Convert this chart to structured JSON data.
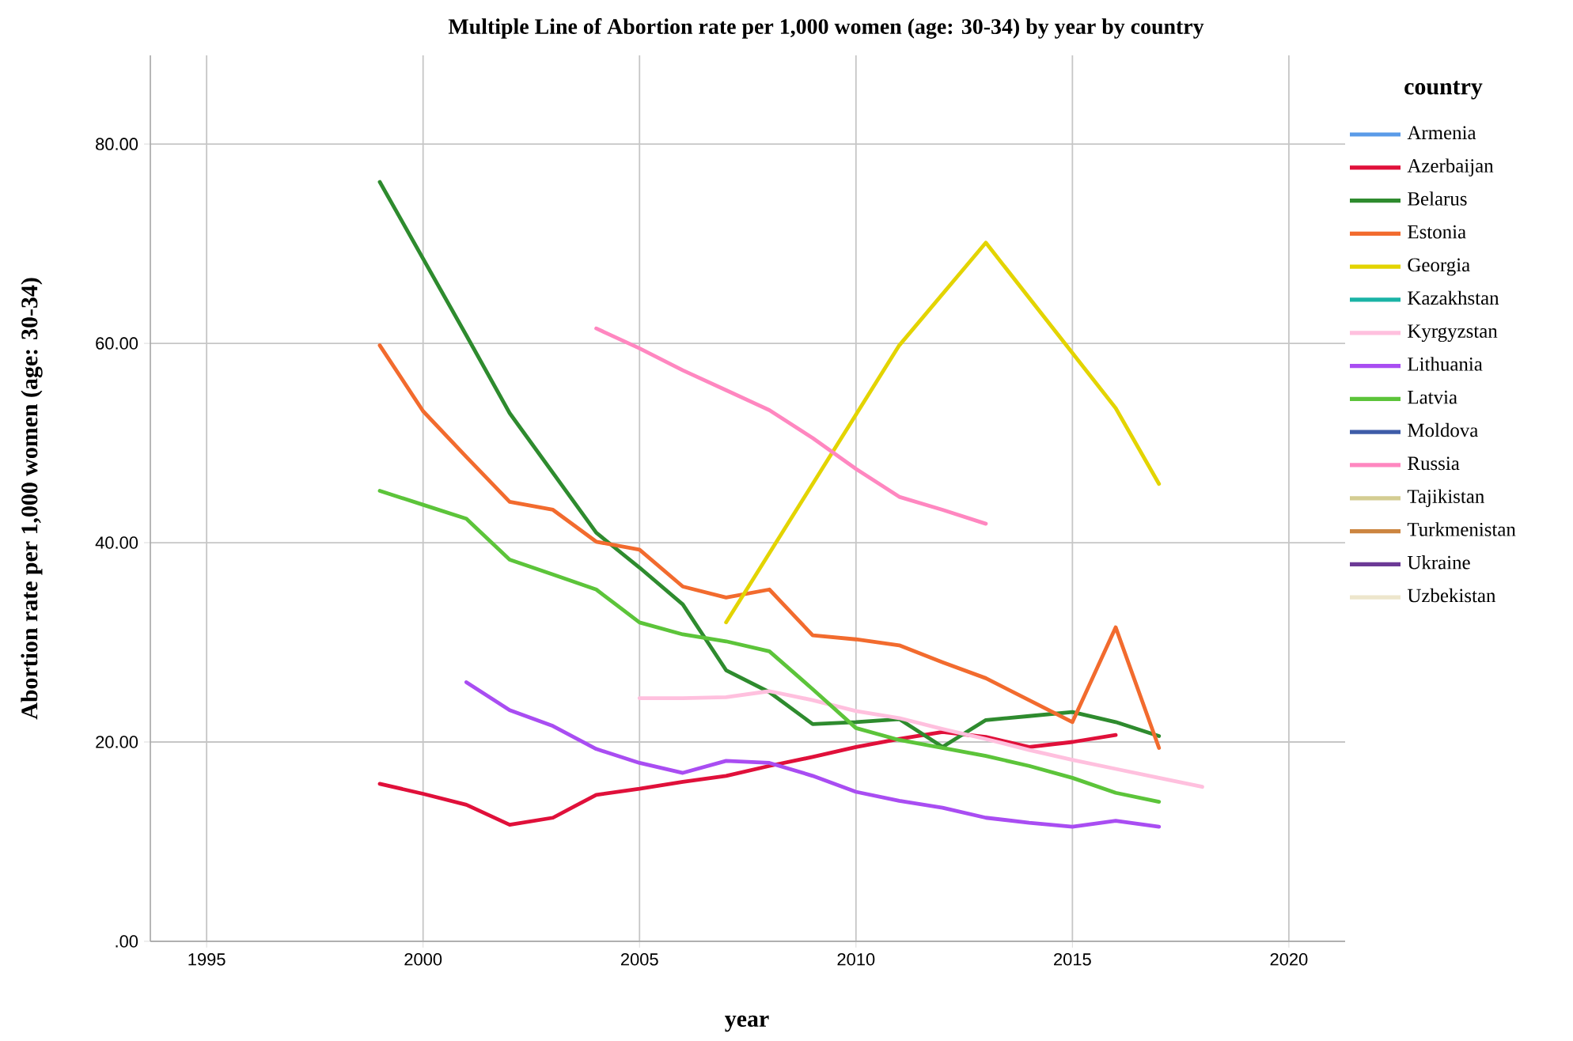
{
  "chart_data": {
    "type": "line",
    "title": "Multiple Line of Abortion rate per 1,000 women (age: 30-34) by year by country",
    "xlabel": "year",
    "ylabel": "Abortion rate per 1,000 women (age: 30-34)",
    "legend_title": "country",
    "legend": "right",
    "grid": true,
    "line_style": "solid",
    "x": [
      1999,
      2000,
      2001,
      2002,
      2003,
      2004,
      2005,
      2006,
      2007,
      2008,
      2009,
      2010,
      2011,
      2012,
      2013,
      2014,
      2015,
      2016,
      2017,
      2018
    ],
    "xlim": [
      1993.7,
      2021.3
    ],
    "xticks": [
      1995,
      2000,
      2005,
      2010,
      2015,
      2020
    ],
    "ylim": [
      0,
      88.9
    ],
    "yticks": [
      {
        "value": 0,
        "label": ".00"
      },
      {
        "value": 20,
        "label": "20.00"
      },
      {
        "value": 40,
        "label": "40.00"
      },
      {
        "value": 60,
        "label": "60.00"
      },
      {
        "value": 80,
        "label": "80.00"
      }
    ],
    "series": [
      {
        "name": "Armenia",
        "color": "#5a9be8",
        "values": [
          null,
          null,
          null,
          null,
          null,
          null,
          null,
          null,
          null,
          null,
          null,
          null,
          null,
          null,
          null,
          null,
          null,
          null,
          null,
          null
        ]
      },
      {
        "name": "Azerbaijan",
        "color": "#e0103a",
        "values": [
          15.8,
          14.8,
          13.7,
          11.7,
          12.4,
          14.7,
          15.3,
          16.0,
          16.6,
          17.6,
          18.5,
          19.5,
          20.3,
          21.0,
          20.5,
          19.5,
          20.0,
          20.7,
          null,
          null
        ]
      },
      {
        "name": "Belarus",
        "color": "#2e8b2e",
        "values": [
          76.2,
          68.5,
          60.8,
          53.0,
          47.0,
          41.0,
          37.5,
          33.8,
          27.2,
          25.0,
          21.8,
          22.0,
          22.3,
          19.5,
          22.2,
          22.6,
          23.0,
          22.0,
          20.6,
          null
        ]
      },
      {
        "name": "Estonia",
        "color": "#f26b2e",
        "values": [
          59.8,
          53.2,
          48.6,
          44.1,
          43.3,
          40.1,
          39.3,
          35.6,
          34.5,
          35.3,
          30.7,
          30.3,
          29.7,
          28.0,
          26.4,
          24.2,
          22.0,
          31.5,
          19.4,
          null
        ]
      },
      {
        "name": "Georgia",
        "color": "#e3d400",
        "x": [
          2007,
          2011,
          2013,
          2016,
          2017
        ],
        "values": [
          32.0,
          59.8,
          70.1,
          53.5,
          45.9
        ]
      },
      {
        "name": "Kazakhstan",
        "color": "#1ab3a6",
        "values": [
          null,
          null,
          null,
          null,
          null,
          null,
          null,
          null,
          null,
          null,
          null,
          null,
          null,
          null,
          null,
          null,
          null,
          null,
          null,
          null
        ]
      },
      {
        "name": "Kyrgyzstan",
        "color": "#ffc0de",
        "values": [
          null,
          null,
          null,
          null,
          null,
          null,
          24.4,
          24.4,
          24.5,
          25.1,
          24.2,
          23.1,
          22.4,
          21.3,
          20.3,
          19.2,
          18.2,
          17.3,
          16.4,
          15.5
        ]
      },
      {
        "name": "Lithuania",
        "color": "#a94df2",
        "values": [
          null,
          null,
          26.0,
          23.2,
          21.6,
          19.3,
          17.9,
          16.9,
          18.1,
          17.9,
          16.6,
          15.0,
          14.1,
          13.4,
          12.4,
          11.9,
          11.5,
          12.1,
          11.5,
          null
        ]
      },
      {
        "name": "Latvia",
        "color": "#5cc43a",
        "values": [
          45.2,
          43.8,
          42.4,
          38.3,
          36.8,
          35.3,
          32.0,
          30.8,
          30.1,
          29.1,
          25.3,
          21.4,
          20.2,
          19.4,
          18.6,
          17.6,
          16.4,
          14.9,
          14.0,
          null
        ]
      },
      {
        "name": "Moldova",
        "color": "#3e5ca8",
        "values": [
          null,
          null,
          null,
          null,
          null,
          null,
          null,
          null,
          null,
          null,
          null,
          null,
          null,
          null,
          null,
          null,
          null,
          null,
          null,
          null
        ]
      },
      {
        "name": "Russia",
        "color": "#ff87c0",
        "values": [
          null,
          null,
          null,
          null,
          null,
          61.5,
          59.5,
          57.3,
          55.3,
          53.3,
          50.5,
          47.4,
          44.6,
          43.3,
          41.9,
          null,
          null,
          null,
          null,
          null
        ]
      },
      {
        "name": "Tajikistan",
        "color": "#d4cd92",
        "values": [
          null,
          null,
          null,
          null,
          null,
          null,
          null,
          null,
          null,
          null,
          null,
          null,
          null,
          null,
          null,
          null,
          null,
          null,
          null,
          null
        ]
      },
      {
        "name": "Turkmenistan",
        "color": "#cc8540",
        "values": [
          null,
          null,
          null,
          null,
          null,
          null,
          null,
          null,
          null,
          null,
          null,
          null,
          null,
          null,
          null,
          null,
          null,
          null,
          null,
          null
        ]
      },
      {
        "name": "Ukraine",
        "color": "#6c3a96",
        "values": [
          null,
          null,
          null,
          null,
          null,
          null,
          null,
          null,
          null,
          null,
          null,
          null,
          null,
          null,
          null,
          null,
          null,
          null,
          null,
          null
        ]
      },
      {
        "name": "Uzbekistan",
        "color": "#ede6cc",
        "values": [
          null,
          null,
          null,
          null,
          null,
          null,
          null,
          null,
          null,
          null,
          null,
          null,
          null,
          null,
          null,
          null,
          null,
          null,
          null,
          null
        ]
      }
    ]
  }
}
